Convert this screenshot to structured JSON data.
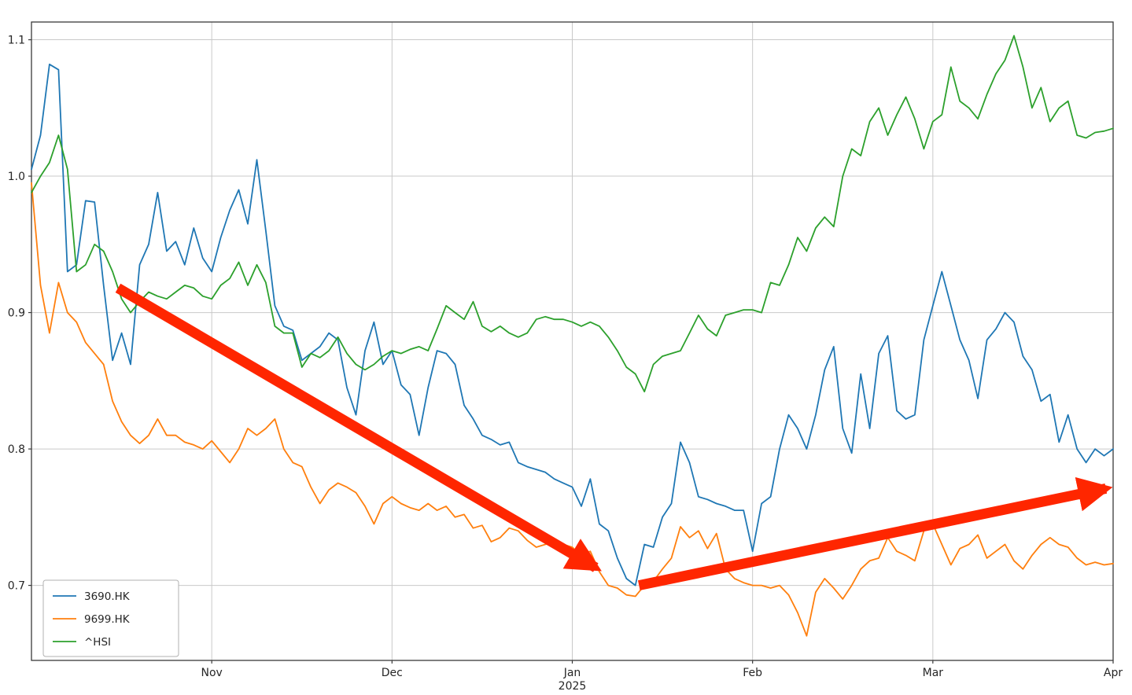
{
  "figure": {
    "background": "#ffffff",
    "plot_border_color": "#3a3a3a",
    "grid_color": "#c9c9c9",
    "tick_label_color": "#262626"
  },
  "chart_data": {
    "type": "line",
    "title": "",
    "xlabel": "",
    "ylabel": "",
    "x_unit": "months since 2024-10-01 (0 = Oct 2024, 6 = Apr 2025)",
    "xlim": [
      0,
      6
    ],
    "ylim": [
      0.645,
      1.113
    ],
    "grid": true,
    "yticks": [
      0.7,
      0.8,
      0.9,
      1.0,
      1.1
    ],
    "xticks": [
      {
        "pos": 1,
        "label": "Nov",
        "sublabel": ""
      },
      {
        "pos": 2,
        "label": "Dec",
        "sublabel": ""
      },
      {
        "pos": 3,
        "label": "Jan",
        "sublabel": "2025"
      },
      {
        "pos": 4,
        "label": "Feb",
        "sublabel": ""
      },
      {
        "pos": 5,
        "label": "Mar",
        "sublabel": ""
      },
      {
        "pos": 6,
        "label": "Apr",
        "sublabel": ""
      }
    ],
    "legend": {
      "position": "lower-left",
      "entries": [
        "3690.HK",
        "9699.HK",
        "^HSI"
      ]
    },
    "x_step": 0.05,
    "series": [
      {
        "name": "3690.HK",
        "color": "#1f77b4",
        "values": [
          1.005,
          1.03,
          1.082,
          1.078,
          0.93,
          0.935,
          0.982,
          0.981,
          0.92,
          0.865,
          0.885,
          0.862,
          0.935,
          0.95,
          0.988,
          0.945,
          0.952,
          0.935,
          0.962,
          0.94,
          0.93,
          0.955,
          0.975,
          0.99,
          0.965,
          1.012,
          0.96,
          0.905,
          0.89,
          0.887,
          0.865,
          0.87,
          0.875,
          0.885,
          0.88,
          0.845,
          0.825,
          0.872,
          0.893,
          0.862,
          0.872,
          0.847,
          0.84,
          0.81,
          0.845,
          0.872,
          0.87,
          0.862,
          0.832,
          0.822,
          0.81,
          0.807,
          0.803,
          0.805,
          0.79,
          0.787,
          0.785,
          0.783,
          0.778,
          0.775,
          0.772,
          0.758,
          0.778,
          0.745,
          0.74,
          0.72,
          0.705,
          0.7,
          0.73,
          0.728,
          0.75,
          0.76,
          0.805,
          0.79,
          0.765,
          0.763,
          0.76,
          0.758,
          0.755,
          0.755,
          0.725,
          0.76,
          0.765,
          0.8,
          0.825,
          0.815,
          0.8,
          0.825,
          0.858,
          0.875,
          0.815,
          0.797,
          0.855,
          0.815,
          0.87,
          0.883,
          0.828,
          0.822,
          0.825,
          0.88,
          0.905,
          0.93,
          0.905,
          0.88,
          0.865,
          0.837,
          0.88,
          0.888,
          0.9,
          0.893,
          0.868,
          0.858,
          0.835,
          0.84,
          0.805,
          0.825,
          0.8,
          0.79,
          0.8,
          0.795,
          0.8
        ]
      },
      {
        "name": "9699.HK",
        "color": "#ff7f0e",
        "values": [
          0.995,
          0.92,
          0.885,
          0.922,
          0.9,
          0.893,
          0.878,
          0.87,
          0.862,
          0.835,
          0.82,
          0.81,
          0.804,
          0.81,
          0.822,
          0.81,
          0.81,
          0.805,
          0.803,
          0.8,
          0.806,
          0.798,
          0.79,
          0.8,
          0.815,
          0.81,
          0.815,
          0.822,
          0.8,
          0.79,
          0.787,
          0.772,
          0.76,
          0.77,
          0.775,
          0.772,
          0.768,
          0.758,
          0.745,
          0.76,
          0.765,
          0.76,
          0.757,
          0.755,
          0.76,
          0.755,
          0.758,
          0.75,
          0.752,
          0.742,
          0.744,
          0.732,
          0.735,
          0.742,
          0.74,
          0.733,
          0.728,
          0.73,
          0.732,
          0.73,
          0.728,
          0.722,
          0.725,
          0.71,
          0.7,
          0.698,
          0.693,
          0.692,
          0.7,
          0.703,
          0.712,
          0.72,
          0.743,
          0.735,
          0.74,
          0.727,
          0.738,
          0.712,
          0.705,
          0.702,
          0.7,
          0.7,
          0.698,
          0.7,
          0.693,
          0.68,
          0.663,
          0.695,
          0.705,
          0.698,
          0.69,
          0.7,
          0.712,
          0.718,
          0.72,
          0.735,
          0.725,
          0.722,
          0.718,
          0.74,
          0.745,
          0.73,
          0.715,
          0.727,
          0.73,
          0.737,
          0.72,
          0.725,
          0.73,
          0.718,
          0.712,
          0.722,
          0.73,
          0.735,
          0.73,
          0.728,
          0.72,
          0.715,
          0.717,
          0.715,
          0.716
        ]
      },
      {
        "name": "^HSI",
        "color": "#2ca02c",
        "values": [
          0.988,
          1.0,
          1.01,
          1.03,
          1.005,
          0.93,
          0.935,
          0.95,
          0.945,
          0.93,
          0.91,
          0.9,
          0.908,
          0.915,
          0.912,
          0.91,
          0.915,
          0.92,
          0.918,
          0.912,
          0.91,
          0.92,
          0.925,
          0.937,
          0.92,
          0.935,
          0.922,
          0.89,
          0.885,
          0.885,
          0.86,
          0.87,
          0.867,
          0.872,
          0.882,
          0.87,
          0.862,
          0.858,
          0.862,
          0.868,
          0.872,
          0.87,
          0.873,
          0.875,
          0.872,
          0.888,
          0.905,
          0.9,
          0.895,
          0.908,
          0.89,
          0.886,
          0.89,
          0.885,
          0.882,
          0.885,
          0.895,
          0.897,
          0.895,
          0.895,
          0.893,
          0.89,
          0.893,
          0.89,
          0.882,
          0.872,
          0.86,
          0.855,
          0.842,
          0.862,
          0.868,
          0.87,
          0.872,
          0.885,
          0.898,
          0.888,
          0.883,
          0.898,
          0.9,
          0.902,
          0.902,
          0.9,
          0.922,
          0.92,
          0.935,
          0.955,
          0.945,
          0.962,
          0.97,
          0.963,
          1.0,
          1.02,
          1.015,
          1.04,
          1.05,
          1.03,
          1.045,
          1.058,
          1.042,
          1.02,
          1.04,
          1.045,
          1.08,
          1.055,
          1.05,
          1.042,
          1.06,
          1.075,
          1.085,
          1.103,
          1.08,
          1.05,
          1.065,
          1.04,
          1.05,
          1.055,
          1.03,
          1.028,
          1.032,
          1.033,
          1.035
        ]
      }
    ],
    "annotations": [
      {
        "type": "arrow",
        "name": "downtrend-arrow",
        "color": "#ff2600",
        "width": 13,
        "from": [
          0.48,
          0.918
        ],
        "to": [
          3.13,
          0.713
        ]
      },
      {
        "type": "arrow",
        "name": "uptrend-arrow",
        "color": "#ff2600",
        "width": 13,
        "from": [
          3.37,
          0.7
        ],
        "to": [
          5.96,
          0.771
        ]
      }
    ]
  }
}
